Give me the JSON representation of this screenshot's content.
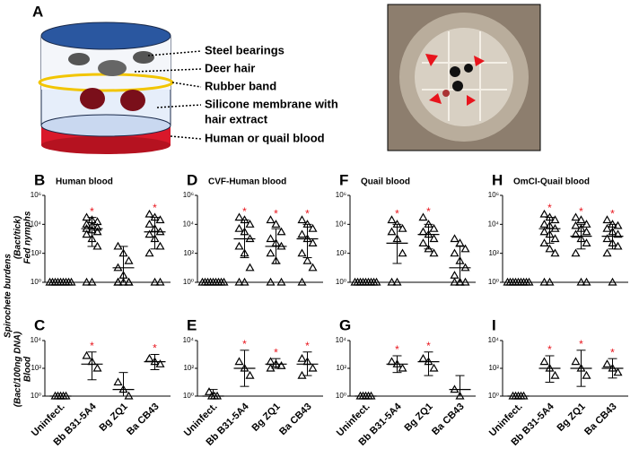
{
  "panel_a": {
    "letter": "A",
    "labels": [
      "Steel bearings",
      "Deer hair",
      "Rubber band",
      "Silicone membrane with",
      "hair extract",
      "Human or quail blood"
    ]
  },
  "figure": {
    "ylabel": "Spirochete burdens",
    "row_labels": [
      {
        "unit": "(Bact/tick)",
        "name": "Fed nymphs"
      },
      {
        "unit": "(Bact/100ng DNA)",
        "name": "Blood"
      }
    ]
  },
  "chart_data": [
    {
      "type": "scatter",
      "letter": "B",
      "title": "Human blood",
      "log_scale": true,
      "ylim": [
        1,
        1000000
      ],
      "yticks": [
        {
          "value": 1,
          "label": "10⁰"
        },
        {
          "value": 100,
          "label": "10²"
        },
        {
          "value": 10000,
          "label": "10⁴"
        },
        {
          "value": 1000000,
          "label": "10⁶"
        }
      ],
      "marker_color": "#000000",
      "annotation_color": "#e8141c",
      "groups": [
        {
          "points": [
            1,
            1,
            1,
            1,
            1,
            1,
            1,
            1,
            1
          ],
          "mean": 1
        },
        {
          "points": [
            30000,
            20000,
            15000,
            10000,
            8000,
            6000,
            5000,
            4000,
            3000,
            2000,
            1000,
            300,
            1,
            1
          ],
          "mean": 5000,
          "error_range": [
            300,
            30000
          ],
          "annotation": "*"
        },
        {
          "points": [
            300,
            100,
            30,
            10,
            3,
            1,
            1,
            1,
            1,
            1
          ],
          "mean": 10,
          "error_range": [
            1,
            300
          ]
        },
        {
          "points": [
            50000,
            30000,
            20000,
            10000,
            5000,
            3000,
            2000,
            1000,
            300,
            100,
            1,
            1
          ],
          "mean": 3000,
          "error_range": [
            200,
            30000
          ],
          "annotation": "*"
        }
      ]
    },
    {
      "type": "scatter",
      "letter": "D",
      "title": "CVF-Human blood",
      "log_scale": true,
      "ylim": [
        1,
        1000000
      ],
      "yticks": [
        {
          "value": 1,
          "label": "10⁰"
        },
        {
          "value": 100,
          "label": "10²"
        },
        {
          "value": 10000,
          "label": "10⁴"
        },
        {
          "value": 1000000,
          "label": "10⁶"
        }
      ],
      "marker_color": "#000000",
      "annotation_color": "#e8141c",
      "groups": [
        {
          "points": [
            1,
            1,
            1,
            1,
            1,
            1,
            1,
            1,
            1
          ],
          "mean": 1
        },
        {
          "points": [
            30000,
            20000,
            10000,
            5000,
            3000,
            1000,
            300,
            100,
            10,
            1,
            1
          ],
          "mean": 1000,
          "error_range": [
            50,
            20000
          ],
          "annotation": "*"
        },
        {
          "points": [
            20000,
            10000,
            3000,
            1000,
            500,
            300,
            100,
            30,
            1,
            1
          ],
          "mean": 300,
          "error_range": [
            20,
            5000
          ],
          "annotation": "*"
        },
        {
          "points": [
            20000,
            10000,
            5000,
            2000,
            1000,
            500,
            100,
            30,
            10,
            1
          ],
          "mean": 1000,
          "error_range": [
            50,
            10000
          ],
          "annotation": "*"
        }
      ]
    },
    {
      "type": "scatter",
      "letter": "F",
      "title": "Quail blood",
      "log_scale": true,
      "ylim": [
        1,
        1000000
      ],
      "yticks": [
        {
          "value": 1,
          "label": "10⁰"
        },
        {
          "value": 100,
          "label": "10²"
        },
        {
          "value": 10000,
          "label": "10⁴"
        },
        {
          "value": 1000000,
          "label": "10⁶"
        }
      ],
      "marker_color": "#000000",
      "annotation_color": "#e8141c",
      "groups": [
        {
          "points": [
            1,
            1,
            1,
            1,
            1,
            1,
            1,
            1,
            1
          ],
          "mean": 1
        },
        {
          "points": [
            20000,
            10000,
            5000,
            3000,
            1000,
            100,
            1,
            1
          ],
          "mean": 500,
          "error_range": [
            20,
            10000
          ],
          "annotation": "*"
        },
        {
          "points": [
            30000,
            10000,
            5000,
            3000,
            2000,
            1000,
            500,
            200,
            100
          ],
          "mean": 2000,
          "error_range": [
            200,
            10000
          ],
          "annotation": "*"
        },
        {
          "points": [
            1000,
            500,
            200,
            100,
            30,
            10,
            3,
            1,
            1,
            1,
            1
          ],
          "mean": 10,
          "error_range": [
            1,
            300
          ]
        }
      ]
    },
    {
      "type": "scatter",
      "letter": "H",
      "title": "OmCI-Quail blood",
      "log_scale": true,
      "ylim": [
        1,
        1000000
      ],
      "yticks": [
        {
          "value": 1,
          "label": "10⁰"
        },
        {
          "value": 100,
          "label": "10²"
        },
        {
          "value": 10000,
          "label": "10⁴"
        },
        {
          "value": 1000000,
          "label": "10⁶"
        }
      ],
      "marker_color": "#000000",
      "annotation_color": "#e8141c",
      "groups": [
        {
          "points": [
            1,
            1,
            1,
            1,
            1,
            1,
            1,
            1,
            1
          ],
          "mean": 1
        },
        {
          "points": [
            50000,
            30000,
            20000,
            10000,
            8000,
            5000,
            3000,
            2000,
            1000,
            500,
            200,
            100,
            1,
            1
          ],
          "mean": 5000,
          "error_range": [
            500,
            30000
          ],
          "annotation": "*"
        },
        {
          "points": [
            30000,
            20000,
            10000,
            8000,
            5000,
            3000,
            2000,
            1000,
            500,
            100,
            1,
            1
          ],
          "mean": 1500,
          "error_range": [
            200,
            10000
          ],
          "annotation": "*"
        },
        {
          "points": [
            20000,
            10000,
            8000,
            5000,
            3000,
            2000,
            1000,
            500,
            300,
            100,
            1
          ],
          "mean": 1500,
          "error_range": [
            200,
            10000
          ],
          "annotation": "*"
        }
      ]
    },
    {
      "type": "scatter",
      "letter": "C",
      "log_scale": true,
      "ylim": [
        1,
        10000
      ],
      "yticks": [
        {
          "value": 1,
          "label": "10⁰"
        },
        {
          "value": 100,
          "label": "10²"
        },
        {
          "value": 10000,
          "label": "10⁴"
        }
      ],
      "categories": [
        "Uninfect.",
        "Bb B31-5A4",
        "Bg ZQ1",
        "Ba CB43"
      ],
      "marker_color": "#000000",
      "annotation_color": "#e8141c",
      "groups": [
        {
          "points": [
            1,
            1,
            1,
            1,
            1
          ],
          "mean": 1
        },
        {
          "points": [
            800,
            300,
            100
          ],
          "mean": 200,
          "error_range": [
            15,
            1500
          ],
          "annotation": "*"
        },
        {
          "points": [
            10,
            3,
            1
          ],
          "mean": 3,
          "error_range": [
            1,
            50
          ]
        },
        {
          "points": [
            500,
            300,
            200
          ],
          "mean": 300,
          "error_range": [
            80,
            1000
          ],
          "annotation": "*"
        }
      ]
    },
    {
      "type": "scatter",
      "letter": "E",
      "log_scale": true,
      "ylim": [
        1,
        10000
      ],
      "yticks": [
        {
          "value": 1,
          "label": "10⁰"
        },
        {
          "value": 100,
          "label": "10²"
        },
        {
          "value": 10000,
          "label": "10⁴"
        }
      ],
      "categories": [
        "Uninfect.",
        "Bb B31-5A4",
        "Bg ZQ1",
        "Ba CB43"
      ],
      "marker_color": "#000000",
      "annotation_color": "#e8141c",
      "groups": [
        {
          "points": [
            2,
            1,
            1,
            1
          ],
          "mean": 1,
          "error_range": [
            1,
            3
          ]
        },
        {
          "points": [
            300,
            100,
            30
          ],
          "mean": 100,
          "error_range": [
            5,
            2000
          ],
          "annotation": "*"
        },
        {
          "points": [
            300,
            200,
            150,
            100
          ],
          "mean": 200,
          "error_range": [
            100,
            500
          ],
          "annotation": "*"
        },
        {
          "points": [
            500,
            300,
            100,
            30
          ],
          "mean": 200,
          "error_range": [
            30,
            1500
          ],
          "annotation": "*"
        }
      ]
    },
    {
      "type": "scatter",
      "letter": "G",
      "log_scale": true,
      "ylim": [
        1,
        10000
      ],
      "yticks": [
        {
          "value": 1,
          "label": "10⁰"
        },
        {
          "value": 100,
          "label": "10²"
        },
        {
          "value": 10000,
          "label": "10⁴"
        }
      ],
      "categories": [
        "Uninfect.",
        "Bb B31-5A4",
        "Bg ZQ1",
        "Ba CB43"
      ],
      "marker_color": "#000000",
      "annotation_color": "#e8141c",
      "groups": [
        {
          "points": [
            1,
            1,
            1,
            1,
            1
          ],
          "mean": 1
        },
        {
          "points": [
            300,
            200,
            100
          ],
          "mean": 200,
          "error_range": [
            50,
            800
          ],
          "annotation": "*"
        },
        {
          "points": [
            500,
            300,
            100
          ],
          "mean": 300,
          "error_range": [
            30,
            1500
          ],
          "annotation": "*"
        },
        {
          "points": [
            3,
            1
          ],
          "mean": 3,
          "error_range": [
            1,
            30
          ]
        }
      ]
    },
    {
      "type": "scatter",
      "letter": "I",
      "log_scale": true,
      "ylim": [
        1,
        10000
      ],
      "yticks": [
        {
          "value": 1,
          "label": "10⁰"
        },
        {
          "value": 100,
          "label": "10²"
        },
        {
          "value": 10000,
          "label": "10⁴"
        }
      ],
      "categories": [
        "Uninfect.",
        "Bb B31-5A4",
        "Bg ZQ1",
        "Ba CB43"
      ],
      "marker_color": "#000000",
      "annotation_color": "#e8141c",
      "groups": [
        {
          "points": [
            1,
            1,
            1,
            1,
            1
          ],
          "mean": 1
        },
        {
          "points": [
            300,
            100,
            30
          ],
          "mean": 100,
          "error_range": [
            10,
            800
          ],
          "annotation": "*"
        },
        {
          "points": [
            300,
            100,
            30
          ],
          "mean": 100,
          "error_range": [
            5,
            2000
          ],
          "annotation": "*"
        },
        {
          "points": [
            200,
            100,
            50
          ],
          "mean": 100,
          "error_range": [
            20,
            500
          ],
          "annotation": "*"
        }
      ]
    }
  ]
}
